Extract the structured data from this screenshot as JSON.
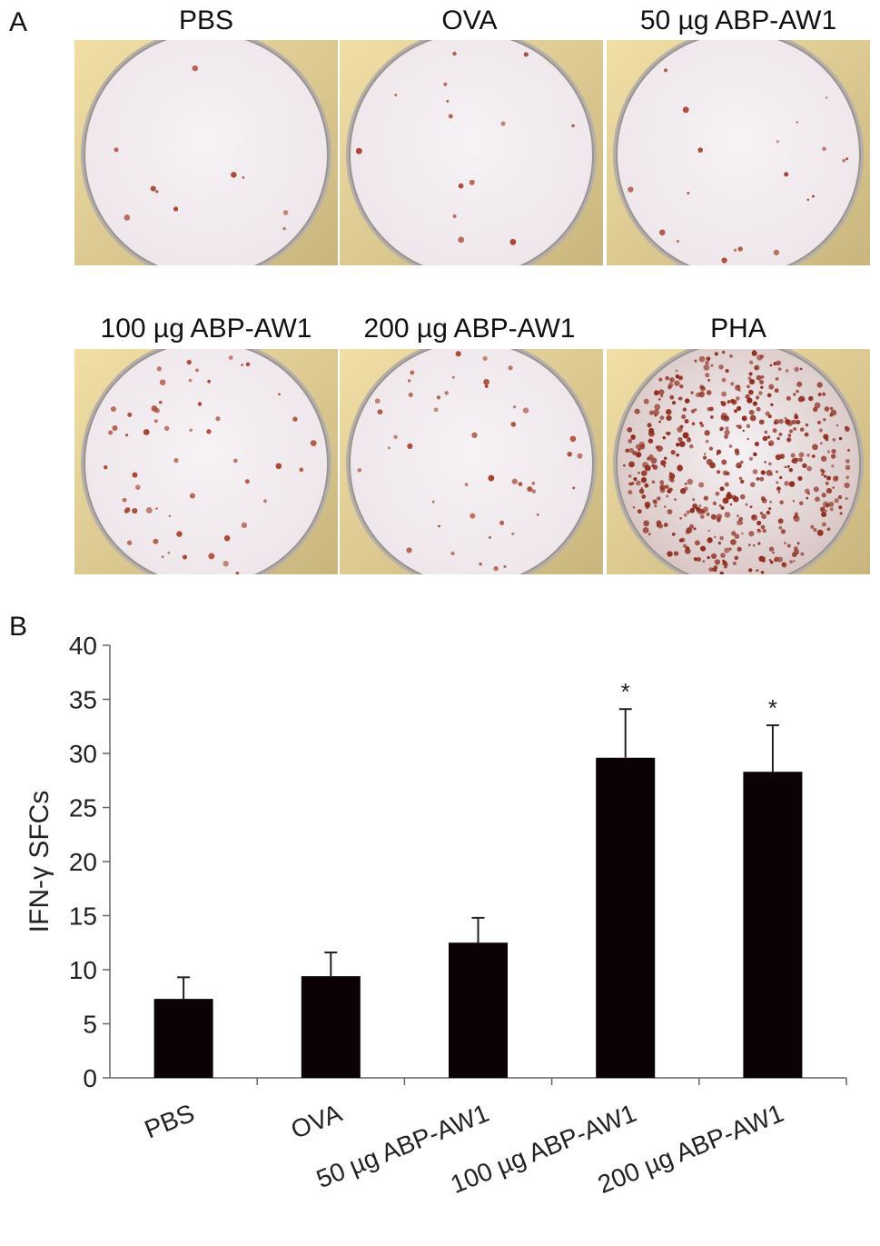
{
  "panel_a": {
    "letter": "A",
    "wells": [
      {
        "label": "PBS",
        "spots": 10,
        "spot_color": "#a8452f",
        "background": "#eee6ea"
      },
      {
        "label": "OVA",
        "spots": 14,
        "spot_color": "#a8452f",
        "background": "#eee6ea"
      },
      {
        "label": "50 µg ABP-AW1",
        "spots": 20,
        "spot_color": "#a8452f",
        "background": "#eee6ea"
      },
      {
        "label": "100 µg ABP-AW1",
        "spots": 55,
        "spot_color": "#a8452f",
        "background": "#eee6ea"
      },
      {
        "label": "200 µg ABP-AW1",
        "spots": 45,
        "spot_color": "#a8452f",
        "background": "#eee6ea"
      },
      {
        "label": "PHA",
        "spots": 520,
        "spot_color": "#8e2c1e",
        "background": "#d9c6c4"
      }
    ]
  },
  "panel_b": {
    "letter": "B"
  },
  "chart_data": {
    "type": "bar",
    "categories": [
      "PBS",
      "OVA",
      "50 µg ABP-AW1",
      "100 µg ABP-AW1",
      "200 µg ABP-AW1"
    ],
    "values": [
      7.3,
      9.4,
      12.5,
      29.6,
      28.3
    ],
    "errors": [
      2.0,
      2.2,
      2.3,
      4.5,
      4.3
    ],
    "annotations": [
      "",
      "",
      "",
      "*",
      "*"
    ],
    "ylabel": "IFN-γ SFCs",
    "xlabel": "",
    "ylim": [
      0,
      40
    ],
    "yticks": [
      0,
      5,
      10,
      15,
      20,
      25,
      30,
      35,
      40
    ],
    "bar_color": "#0a0203",
    "grid": false,
    "legend": "none"
  }
}
